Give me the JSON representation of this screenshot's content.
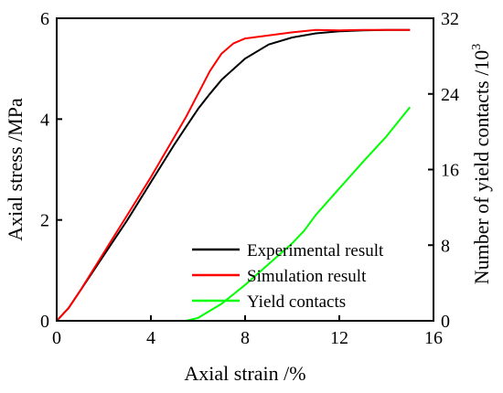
{
  "chart_data": {
    "type": "line",
    "xlabel": "Axial strain /%",
    "ylabel_left": "Axial stress /MPa",
    "ylabel_right_base": "Number of yield contacts /10",
    "ylabel_right_exp": "3",
    "xlim": [
      0,
      16
    ],
    "ylim_left": [
      0,
      6
    ],
    "ylim_right": [
      0,
      32
    ],
    "x_ticks": [
      "0",
      "4",
      "8",
      "12",
      "16"
    ],
    "y_left_ticks": [
      "0",
      "2",
      "4",
      "6"
    ],
    "y_right_ticks": [
      "0",
      "8",
      "16",
      "24",
      "32"
    ],
    "grid": false,
    "legend_position": "bottom-right",
    "series": [
      {
        "name": "Experimental result",
        "axis": "left",
        "color": "#000000",
        "x": [
          0,
          0.5,
          1,
          2,
          3,
          4,
          5,
          5.5,
          6,
          6.5,
          7,
          8,
          9,
          10,
          11,
          12,
          13,
          14,
          15
        ],
        "y": [
          0,
          0.25,
          0.6,
          1.3,
          2.0,
          2.75,
          3.5,
          3.85,
          4.2,
          4.5,
          4.78,
          5.2,
          5.48,
          5.62,
          5.7,
          5.74,
          5.76,
          5.77,
          5.77
        ]
      },
      {
        "name": "Simulation result",
        "axis": "left",
        "color": "#ff0000",
        "x": [
          0,
          0.5,
          1,
          2,
          3,
          4,
          5,
          5.5,
          6,
          6.5,
          7,
          7.5,
          8,
          9,
          10,
          11,
          12,
          13,
          14,
          15
        ],
        "y": [
          0,
          0.25,
          0.6,
          1.35,
          2.1,
          2.85,
          3.65,
          4.05,
          4.5,
          4.95,
          5.3,
          5.5,
          5.6,
          5.66,
          5.72,
          5.77,
          5.76,
          5.77,
          5.77,
          5.77
        ]
      },
      {
        "name": "Yield contacts",
        "axis": "right",
        "color": "#00ff00",
        "x": [
          5,
          5.5,
          6,
          7,
          8,
          9,
          10,
          10.5,
          11,
          12,
          13,
          14,
          15
        ],
        "y": [
          0,
          0,
          0.3,
          1.8,
          3.8,
          6.0,
          8.2,
          9.5,
          11.2,
          14.0,
          16.8,
          19.5,
          22.6
        ]
      }
    ]
  }
}
